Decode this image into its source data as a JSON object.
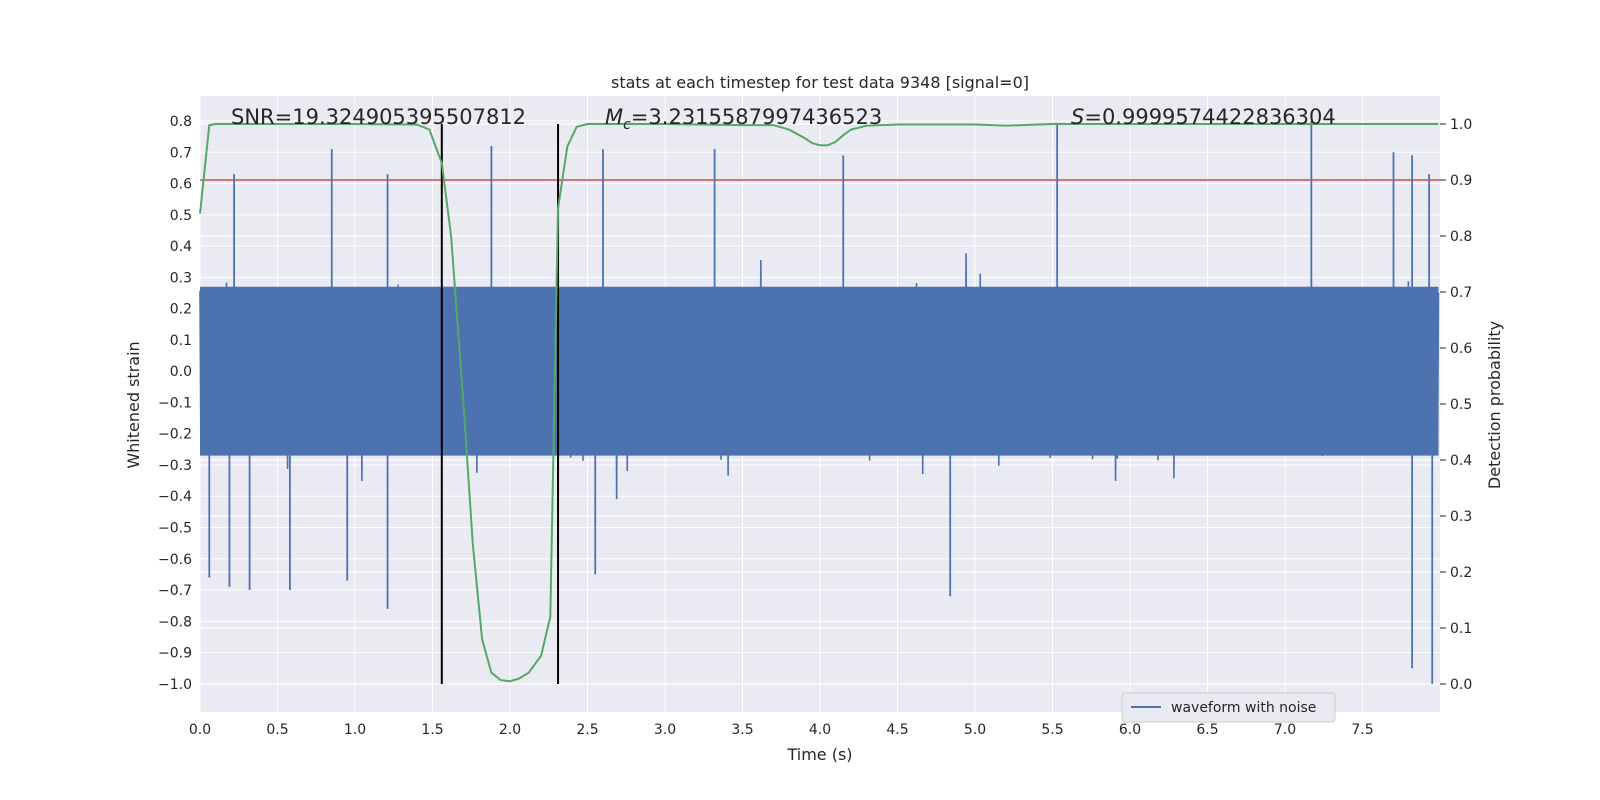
{
  "chart_data": {
    "type": "line",
    "title": "stats at each timestep for test data 9348 [signal=0]",
    "xlabel": "Time (s)",
    "ylabel": "Whitened strain",
    "ylabel_right": "Detection probability",
    "xlim": [
      0.0,
      8.0
    ],
    "ylim": [
      -1.09,
      0.88
    ],
    "ylim_right": [
      -0.05,
      1.05
    ],
    "x_ticks": [
      0.0,
      0.5,
      1.0,
      1.5,
      2.0,
      2.5,
      3.0,
      3.5,
      4.0,
      4.5,
      5.0,
      5.5,
      6.0,
      6.5,
      7.0,
      7.5
    ],
    "x_tick_labels": [
      "0.0",
      "0.5",
      "1.0",
      "1.5",
      "2.0",
      "2.5",
      "3.0",
      "3.5",
      "4.0",
      "4.5",
      "5.0",
      "5.5",
      "6.0",
      "6.5",
      "7.0",
      "7.5"
    ],
    "y_ticks": [
      0.8,
      0.7,
      0.6,
      0.5,
      0.4,
      0.3,
      0.2,
      0.1,
      0.0,
      -0.1,
      -0.2,
      -0.3,
      -0.4,
      -0.5,
      -0.6,
      -0.7,
      -0.8,
      -0.9,
      -1.0
    ],
    "y_tick_labels": [
      "0.8",
      "0.7",
      "0.6",
      "0.5",
      "0.4",
      "0.3",
      "0.2",
      "0.1",
      "0.0",
      "−0.1",
      "−0.2",
      "−0.3",
      "−0.4",
      "−0.5",
      "−0.6",
      "−0.7",
      "−0.8",
      "−0.9",
      "−1.0"
    ],
    "y_right_ticks": [
      1.0,
      0.9,
      0.8,
      0.7,
      0.6,
      0.5,
      0.4,
      0.3,
      0.2,
      0.1,
      0.0
    ],
    "y_right_tick_labels": [
      "1.0",
      "0.9",
      "0.8",
      "0.7",
      "0.6",
      "0.5",
      "0.4",
      "0.3",
      "0.2",
      "0.1",
      "0.0"
    ],
    "annotations": {
      "snr": "SNR=19.324905395507812",
      "mc_symbol": "M",
      "mc_sub": "c",
      "mc_value": "=3.2315587997436523",
      "s_symbol": "S",
      "s_value": "=0.9999574422836304"
    },
    "threshold_line": {
      "y_right": 0.9,
      "color": "#c44e52"
    },
    "vertical_markers_x": [
      1.56,
      2.31
    ],
    "waveform": {
      "name": "waveform with noise",
      "color": "#4c72b0",
      "x_end": 7.99,
      "core_amplitude": 0.27,
      "spikes": [
        {
          "x": 0.22,
          "y": 0.63
        },
        {
          "x": 0.85,
          "y": 0.71
        },
        {
          "x": 1.21,
          "y": 0.63
        },
        {
          "x": 1.88,
          "y": 0.72
        },
        {
          "x": 2.6,
          "y": 0.71
        },
        {
          "x": 3.32,
          "y": 0.71
        },
        {
          "x": 4.15,
          "y": 0.69
        },
        {
          "x": 5.53,
          "y": 0.79
        },
        {
          "x": 7.17,
          "y": 0.8
        },
        {
          "x": 7.7,
          "y": 0.7
        },
        {
          "x": 7.82,
          "y": 0.69
        },
        {
          "x": 7.93,
          "y": 0.63
        },
        {
          "x": 0.06,
          "y": -0.66
        },
        {
          "x": 0.19,
          "y": -0.69
        },
        {
          "x": 0.32,
          "y": -0.7
        },
        {
          "x": 0.58,
          "y": -0.7
        },
        {
          "x": 0.95,
          "y": -0.67
        },
        {
          "x": 1.21,
          "y": -0.76
        },
        {
          "x": 2.55,
          "y": -0.65
        },
        {
          "x": 4.84,
          "y": -0.72
        },
        {
          "x": 7.82,
          "y": -0.95
        },
        {
          "x": 7.95,
          "y": -1.0
        }
      ]
    },
    "detection_probability": {
      "color": "#55a868",
      "x": [
        0.0,
        0.06,
        0.1,
        0.2,
        0.5,
        1.0,
        1.4,
        1.48,
        1.56,
        1.62,
        1.7,
        1.76,
        1.82,
        1.88,
        1.94,
        2.0,
        2.06,
        2.12,
        2.2,
        2.26,
        2.31,
        2.37,
        2.43,
        2.5,
        3.0,
        3.5,
        3.7,
        3.8,
        3.9,
        3.95,
        4.0,
        4.05,
        4.1,
        4.15,
        4.2,
        4.3,
        4.5,
        5.0,
        5.2,
        5.3,
        5.5,
        6.0,
        6.5,
        7.0,
        7.5,
        7.99
      ],
      "values": [
        0.84,
        0.998,
        1.0,
        1.0,
        1.0,
        1.0,
        0.999,
        0.99,
        0.93,
        0.8,
        0.5,
        0.25,
        0.08,
        0.02,
        0.007,
        0.005,
        0.01,
        0.02,
        0.05,
        0.12,
        0.85,
        0.96,
        0.995,
        1.0,
        1.0,
        0.998,
        0.998,
        0.99,
        0.975,
        0.966,
        0.962,
        0.962,
        0.968,
        0.98,
        0.99,
        0.997,
        0.999,
        0.999,
        0.997,
        0.998,
        1.0,
        1.0,
        1.0,
        1.0,
        1.0,
        1.0
      ]
    },
    "legend": {
      "location": "lower-right",
      "entries": [
        "waveform with noise"
      ]
    }
  }
}
